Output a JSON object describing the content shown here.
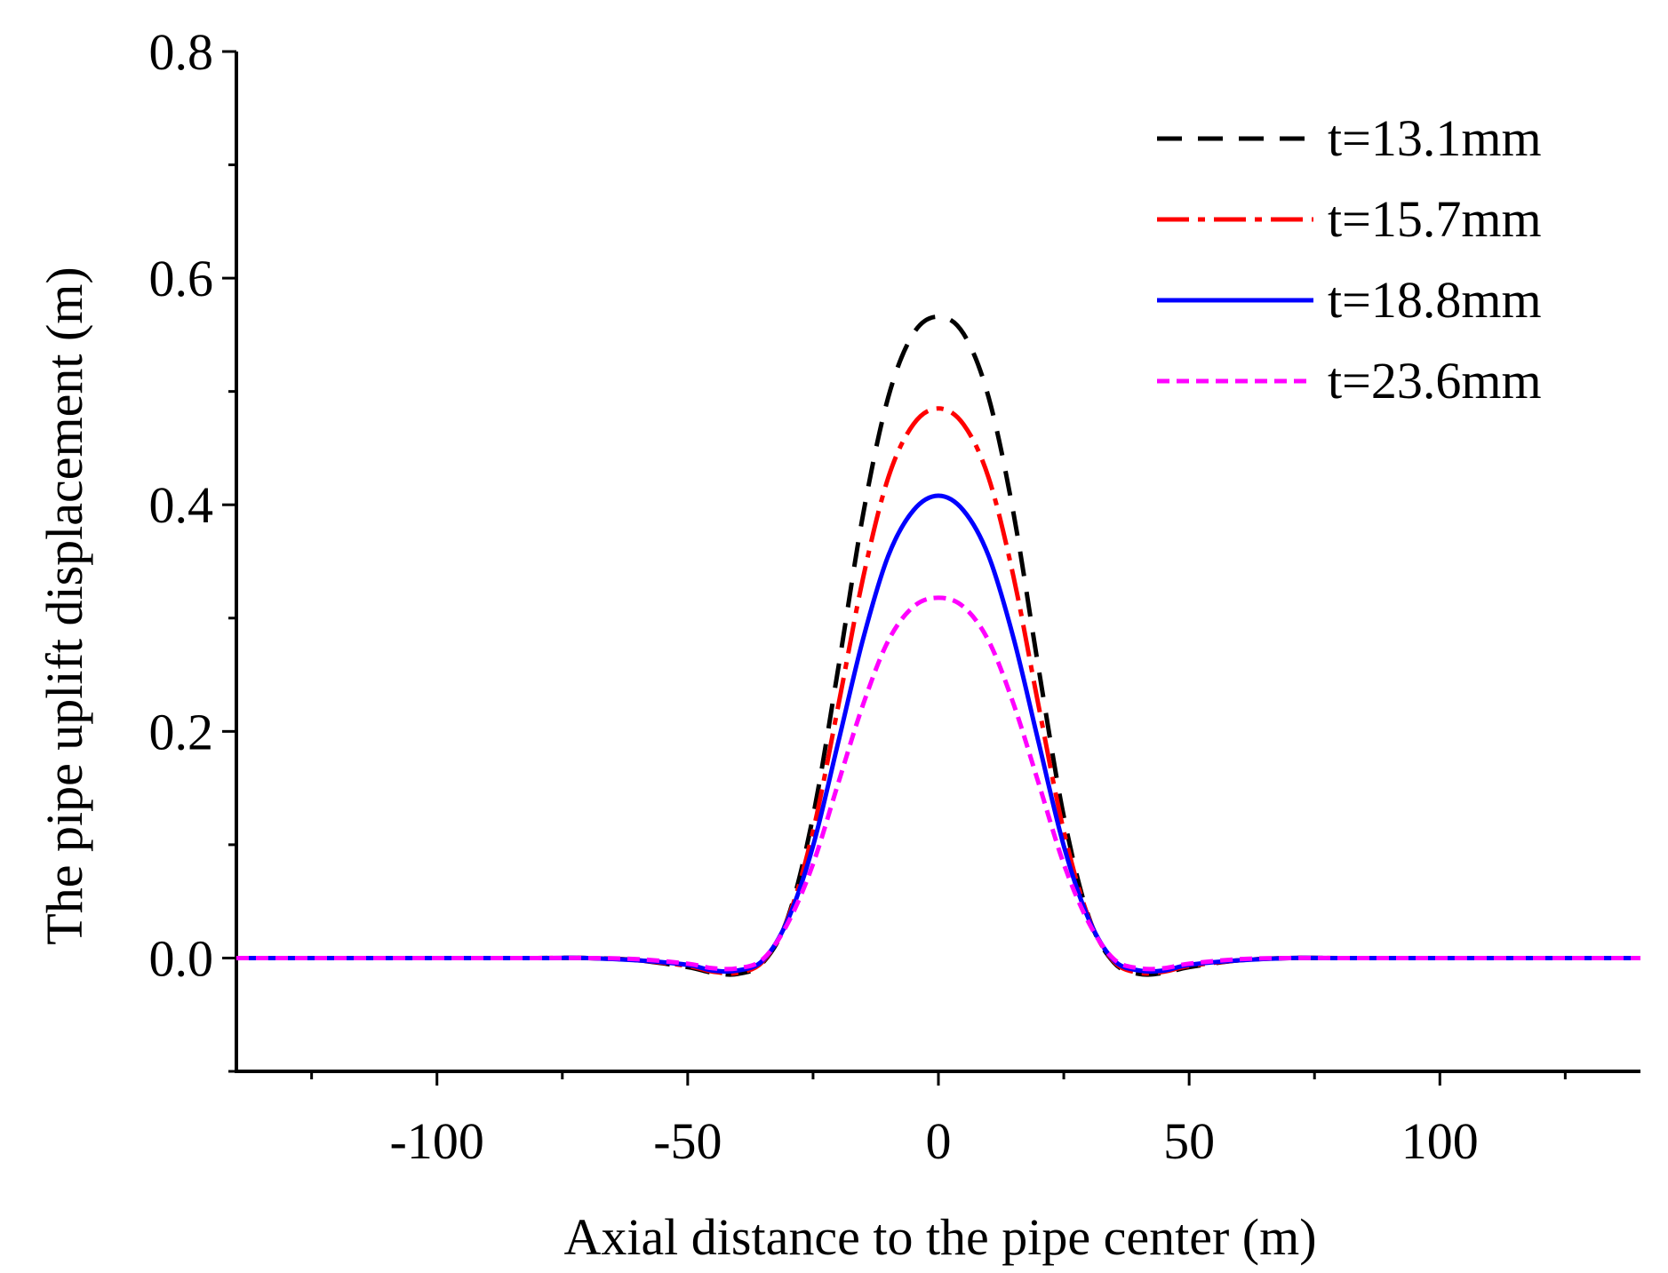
{
  "chart_data": {
    "type": "line",
    "title": "",
    "xlabel": "Axial distance to the pipe center (m)",
    "ylabel": "The pipe uplift displacement (m)",
    "xlim": [
      -140,
      140
    ],
    "ylim": [
      -0.1,
      0.8
    ],
    "x_ticks": [
      -100,
      -50,
      0,
      50,
      100
    ],
    "x_tick_labels": [
      "-100",
      "-50",
      "0",
      "50",
      "100"
    ],
    "x_minor_ticks": [
      -125,
      -75,
      -25,
      25,
      75,
      125
    ],
    "y_ticks": [
      0.0,
      0.2,
      0.4,
      0.6,
      0.8
    ],
    "y_tick_labels": [
      "0.0",
      "0.2",
      "0.4",
      "0.6",
      "0.8"
    ],
    "y_minor_ticks": [
      -0.1,
      0.1,
      0.3,
      0.5,
      0.7
    ],
    "grid": false,
    "legend_position": "top-right",
    "x": [
      -140,
      -100,
      -80,
      -70,
      -60,
      -50,
      -45,
      -40,
      -35,
      -30,
      -25,
      -20,
      -15,
      -10,
      -5,
      0,
      5,
      10,
      15,
      20,
      25,
      30,
      35,
      40,
      45,
      50,
      60,
      70,
      80,
      100,
      140
    ],
    "series": [
      {
        "name": "t=13.1mm",
        "color": "#000000",
        "style": "dashed",
        "values": [
          0.0,
          0.0,
          0.0,
          0.0,
          -0.002,
          -0.008,
          -0.013,
          -0.014,
          -0.004,
          0.036,
          0.125,
          0.255,
          0.392,
          0.495,
          0.551,
          0.566,
          0.551,
          0.495,
          0.392,
          0.255,
          0.125,
          0.036,
          -0.004,
          -0.014,
          -0.013,
          -0.008,
          -0.002,
          0.0,
          0.0,
          0.0,
          0.0
        ]
      },
      {
        "name": "t=15.7mm",
        "color": "#ff0000",
        "style": "dashdot",
        "values": [
          0.0,
          0.0,
          0.0,
          0.0,
          -0.002,
          -0.007,
          -0.012,
          -0.013,
          -0.003,
          0.035,
          0.112,
          0.222,
          0.336,
          0.424,
          0.471,
          0.485,
          0.471,
          0.424,
          0.336,
          0.222,
          0.112,
          0.035,
          -0.003,
          -0.013,
          -0.012,
          -0.007,
          -0.002,
          0.0,
          0.0,
          0.0,
          0.0
        ]
      },
      {
        "name": "t=18.8mm",
        "color": "#0000ff",
        "style": "solid",
        "values": [
          0.0,
          0.0,
          0.0,
          0.0,
          -0.002,
          -0.006,
          -0.011,
          -0.011,
          -0.002,
          0.034,
          0.099,
          0.19,
          0.282,
          0.355,
          0.395,
          0.408,
          0.395,
          0.355,
          0.282,
          0.19,
          0.099,
          0.034,
          -0.002,
          -0.011,
          -0.011,
          -0.006,
          -0.002,
          0.0,
          0.0,
          0.0,
          0.0
        ]
      },
      {
        "name": "t=23.6mm",
        "color": "#ff00ff",
        "style": "dotted",
        "values": [
          0.0,
          0.0,
          0.0,
          0.0,
          -0.001,
          -0.005,
          -0.009,
          -0.009,
          -0.001,
          0.031,
          0.083,
          0.154,
          0.224,
          0.28,
          0.31,
          0.318,
          0.31,
          0.28,
          0.224,
          0.154,
          0.083,
          0.031,
          -0.001,
          -0.009,
          -0.009,
          -0.005,
          -0.001,
          0.0,
          0.0,
          0.0,
          0.0
        ]
      }
    ]
  }
}
